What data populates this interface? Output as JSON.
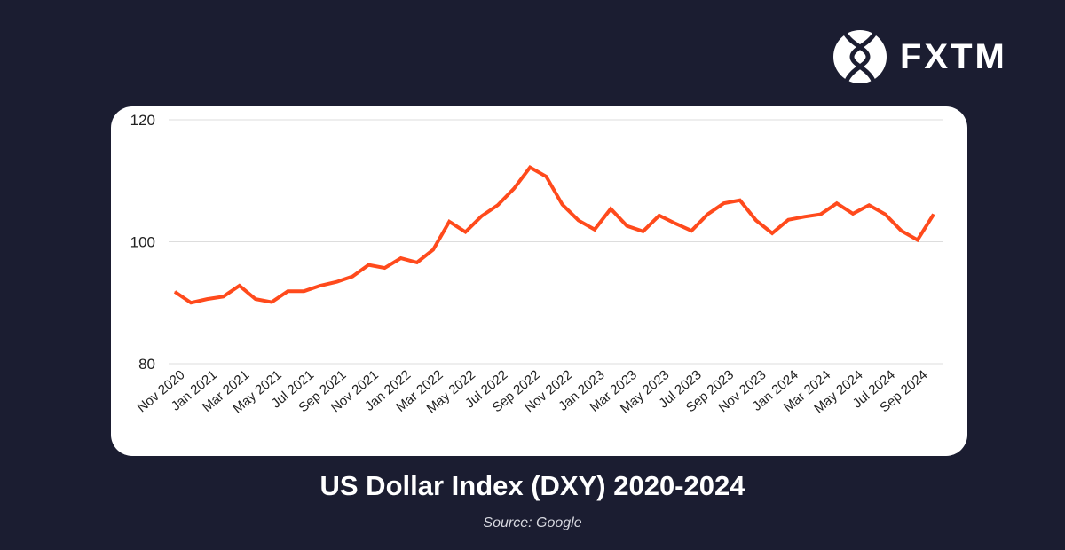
{
  "brand": {
    "logo_text": "FXTM"
  },
  "colors": {
    "background": "#1b1d31",
    "card": "#ffffff",
    "line": "#ff4a1c",
    "grid": "#dddddd"
  },
  "chart_data": {
    "type": "line",
    "title": "US Dollar Index (DXY) 2020-2024",
    "source": "Source: Google",
    "ylim": [
      80,
      120
    ],
    "yticks": [
      80,
      100,
      120
    ],
    "grid": true,
    "x": [
      "Nov 2020",
      "Dec 2020",
      "Jan 2021",
      "Feb 2021",
      "Mar 2021",
      "Apr 2021",
      "May 2021",
      "Jun 2021",
      "Jul 2021",
      "Aug 2021",
      "Sep 2021",
      "Oct 2021",
      "Nov 2021",
      "Dec 2021",
      "Jan 2022",
      "Feb 2022",
      "Mar 2022",
      "Apr 2022",
      "May 2022",
      "Jun 2022",
      "Jul 2022",
      "Aug 2022",
      "Sep 2022",
      "Oct 2022",
      "Nov 2022",
      "Dec 2022",
      "Jan 2023",
      "Feb 2023",
      "Mar 2023",
      "Apr 2023",
      "May 2023",
      "Jun 2023",
      "Jul 2023",
      "Aug 2023",
      "Sep 2023",
      "Oct 2023",
      "Nov 2023",
      "Dec 2023",
      "Jan 2024",
      "Feb 2024",
      "Mar 2024",
      "Apr 2024",
      "May 2024",
      "Jun 2024",
      "Jul 2024",
      "Aug 2024",
      "Sep 2024",
      "Oct 2024"
    ],
    "xtick_labels": [
      "Nov 2020",
      "Jan 2021",
      "Mar 2021",
      "May 2021",
      "Jul 2021",
      "Sep 2021",
      "Nov 2021",
      "Jan 2022",
      "Mar 2022",
      "May 2022",
      "Jul 2022",
      "Sep 2022",
      "Nov 2022",
      "Jan 2023",
      "Mar 2023",
      "May 2023",
      "Jul 2023",
      "Sep 2023",
      "Nov 2023",
      "Jan 2024",
      "Mar 2024",
      "May 2024",
      "Jul 2024",
      "Sep 2024"
    ],
    "series": [
      {
        "values": [
          91.8,
          90.0,
          90.6,
          91.0,
          92.8,
          90.6,
          90.1,
          91.9,
          91.9,
          92.8,
          93.4,
          94.3,
          96.2,
          95.7,
          97.3,
          96.6,
          98.7,
          103.3,
          101.6,
          104.2,
          106.0,
          108.7,
          112.2,
          110.7,
          106.1,
          103.5,
          102.0,
          105.4,
          102.6,
          101.7,
          104.3,
          103.0,
          101.8,
          104.5,
          106.3,
          106.8,
          103.5,
          101.4,
          103.6,
          104.1,
          104.5,
          106.3,
          104.6,
          106.0,
          104.5,
          101.8,
          100.3,
          104.5
        ]
      }
    ]
  }
}
